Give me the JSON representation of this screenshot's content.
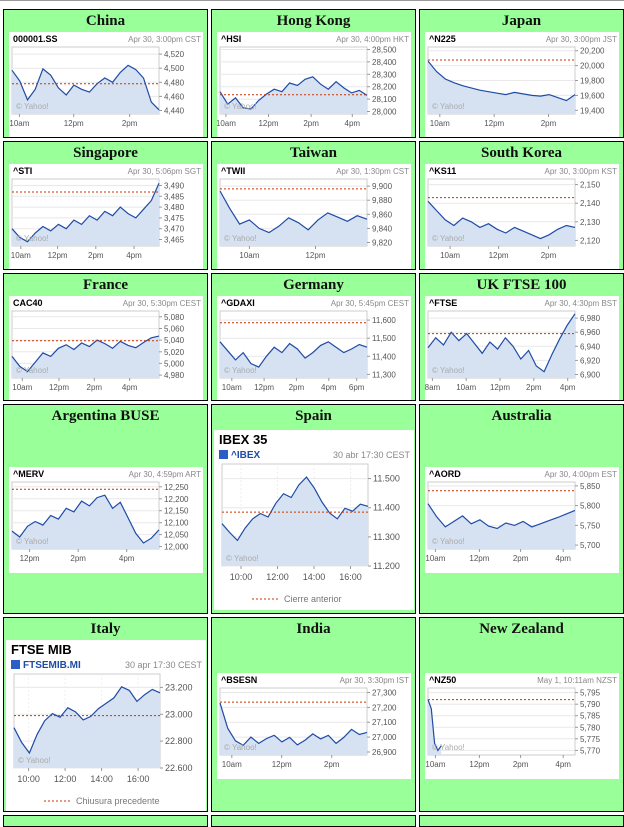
{
  "watermark": "© Yahoo!",
  "colors": {
    "cell_bg": "#99ff99",
    "line": "#1f4ba5",
    "fill": "#d6e2f2",
    "prev_close": "#cc3300",
    "legend_square": "#2b5cc8",
    "grid": "#e8e8e8",
    "axis_text": "#555555",
    "timestamp_text": "#888888"
  },
  "chart_data": [
    {
      "region": "China",
      "type": "area",
      "style": "mini",
      "symbol": "000001.SS",
      "timestamp": "Apr 30, 3:00pm CST",
      "ylim": [
        4435,
        4530
      ],
      "prev_close": 4478,
      "yticks": [
        {
          "v": 4520,
          "label": "4,520"
        },
        {
          "v": 4500,
          "label": "4,500"
        },
        {
          "v": 4480,
          "label": "4,480"
        },
        {
          "v": 4460,
          "label": "4,460"
        },
        {
          "v": 4440,
          "label": "4,440"
        }
      ],
      "xticks": [
        {
          "p": 0.05,
          "label": "10am"
        },
        {
          "p": 0.42,
          "label": "12pm"
        },
        {
          "p": 0.8,
          "label": "2pm"
        }
      ],
      "x_extent": 1,
      "values": [
        4497,
        4482,
        4455,
        4470,
        4499,
        4490,
        4472,
        4462,
        4476,
        4470,
        4466,
        4478,
        4486,
        4480,
        4494,
        4504,
        4498,
        4486,
        4452,
        4441
      ]
    },
    {
      "region": "Hong Kong",
      "type": "area",
      "style": "mini",
      "symbol": "^HSI",
      "timestamp": "Apr 30, 4:00pm HKT",
      "ylim": [
        27980,
        28520
      ],
      "prev_close": 28135,
      "yticks": [
        {
          "v": 28500,
          "label": "28,500"
        },
        {
          "v": 28400,
          "label": "28,400"
        },
        {
          "v": 28300,
          "label": "28,300"
        },
        {
          "v": 28200,
          "label": "28,200"
        },
        {
          "v": 28100,
          "label": "28,100"
        },
        {
          "v": 28000,
          "label": "28,000"
        }
      ],
      "xticks": [
        {
          "p": 0.04,
          "label": "10am"
        },
        {
          "p": 0.33,
          "label": "12pm"
        },
        {
          "p": 0.62,
          "label": "2pm"
        },
        {
          "p": 0.9,
          "label": "4pm"
        }
      ],
      "x_extent": 1,
      "values": [
        28160,
        28060,
        28110,
        28030,
        28020,
        28090,
        28140,
        28180,
        28160,
        28230,
        28210,
        28260,
        28280,
        28220,
        28180,
        28240,
        28190,
        28150,
        28170,
        28130
      ]
    },
    {
      "region": "Japan",
      "type": "area",
      "style": "mini",
      "symbol": "^N225",
      "timestamp": "Apr 30, 3:00pm JST",
      "ylim": [
        19350,
        20250
      ],
      "prev_close": 20075,
      "yticks": [
        {
          "v": 20200,
          "label": "20,200"
        },
        {
          "v": 20000,
          "label": "20,000"
        },
        {
          "v": 19800,
          "label": "19,800"
        },
        {
          "v": 19600,
          "label": "19,600"
        },
        {
          "v": 19400,
          "label": "19,400"
        }
      ],
      "xticks": [
        {
          "p": 0.08,
          "label": "10am"
        },
        {
          "p": 0.45,
          "label": "12pm"
        },
        {
          "p": 0.82,
          "label": "2pm"
        }
      ],
      "x_extent": 1,
      "values": [
        20060,
        19920,
        19820,
        19770,
        19730,
        19700,
        19670,
        19650,
        19630,
        19610,
        19640,
        19620,
        19600,
        19590,
        19610,
        19570,
        19530,
        19610
      ]
    },
    {
      "region": "Singapore",
      "type": "area",
      "style": "mini",
      "symbol": "^STI",
      "timestamp": "Apr 30, 5:06pm SGT",
      "ylim": [
        3462,
        3493
      ],
      "prev_close": 3487,
      "yticks": [
        {
          "v": 3490,
          "label": "3,490"
        },
        {
          "v": 3485,
          "label": "3,485"
        },
        {
          "v": 3480,
          "label": "3,480"
        },
        {
          "v": 3475,
          "label": "3,475"
        },
        {
          "v": 3470,
          "label": "3,470"
        },
        {
          "v": 3465,
          "label": "3,465"
        }
      ],
      "xticks": [
        {
          "p": 0.06,
          "label": "10am"
        },
        {
          "p": 0.31,
          "label": "12pm"
        },
        {
          "p": 0.57,
          "label": "2pm"
        },
        {
          "p": 0.83,
          "label": "4pm"
        }
      ],
      "x_extent": 1,
      "values": [
        3470,
        3466,
        3464,
        3468,
        3471,
        3469,
        3472,
        3470,
        3474,
        3472,
        3476,
        3474,
        3478,
        3476,
        3480,
        3477,
        3475,
        3479,
        3483,
        3491
      ]
    },
    {
      "region": "Taiwan",
      "type": "area",
      "style": "mini",
      "symbol": "^TWII",
      "timestamp": "Apr 30, 1:30pm CST",
      "ylim": [
        9815,
        9910
      ],
      "prev_close": 9896,
      "yticks": [
        {
          "v": 9900,
          "label": "9,900"
        },
        {
          "v": 9880,
          "label": "9,880"
        },
        {
          "v": 9860,
          "label": "9,860"
        },
        {
          "v": 9840,
          "label": "9,840"
        },
        {
          "v": 9820,
          "label": "9,820"
        }
      ],
      "xticks": [
        {
          "p": 0.2,
          "label": "10am"
        },
        {
          "p": 0.65,
          "label": "12pm"
        }
      ],
      "x_extent": 1,
      "values": [
        9893,
        9868,
        9846,
        9852,
        9840,
        9834,
        9843,
        9855,
        9848,
        9838,
        9852,
        9862,
        9856,
        9850,
        9858,
        9853
      ]
    },
    {
      "region": "South Korea",
      "type": "area",
      "style": "mini",
      "symbol": "^KS11",
      "timestamp": "Apr 30, 3:00pm KST",
      "ylim": [
        2117,
        2153
      ],
      "prev_close": 2143,
      "yticks": [
        {
          "v": 2150,
          "label": "2,150"
        },
        {
          "v": 2140,
          "label": "2,140"
        },
        {
          "v": 2130,
          "label": "2,130"
        },
        {
          "v": 2120,
          "label": "2,120"
        }
      ],
      "xticks": [
        {
          "p": 0.15,
          "label": "10am"
        },
        {
          "p": 0.48,
          "label": "12pm"
        },
        {
          "p": 0.82,
          "label": "2pm"
        }
      ],
      "x_extent": 1,
      "values": [
        2141,
        2136,
        2131,
        2128,
        2132,
        2130,
        2127,
        2129,
        2126,
        2124,
        2127,
        2125,
        2123,
        2121,
        2123,
        2126,
        2128,
        2127
      ]
    },
    {
      "region": "France",
      "type": "area",
      "style": "mini",
      "symbol": "CAC40",
      "timestamp": "Apr 30, 5:30pm CEST",
      "ylim": [
        4975,
        5090
      ],
      "prev_close": 5039,
      "yticks": [
        {
          "v": 5080,
          "label": "5,080"
        },
        {
          "v": 5060,
          "label": "5,060"
        },
        {
          "v": 5040,
          "label": "5,040"
        },
        {
          "v": 5020,
          "label": "5,020"
        },
        {
          "v": 5000,
          "label": "5,000"
        },
        {
          "v": 4980,
          "label": "4,980"
        }
      ],
      "xticks": [
        {
          "p": 0.07,
          "label": "10am"
        },
        {
          "p": 0.32,
          "label": "12pm"
        },
        {
          "p": 0.56,
          "label": "2pm"
        },
        {
          "p": 0.8,
          "label": "4pm"
        }
      ],
      "x_extent": 1,
      "values": [
        5012,
        4995,
        4986,
        5002,
        5018,
        5012,
        5026,
        5032,
        5024,
        5035,
        5029,
        5040,
        5034,
        5026,
        5038,
        5031,
        5027,
        5036,
        5044,
        5047
      ]
    },
    {
      "region": "Germany",
      "type": "area",
      "style": "mini",
      "symbol": "^GDAXI",
      "timestamp": "Apr 30, 5:45pm CEST",
      "ylim": [
        11280,
        11650
      ],
      "prev_close": 11585,
      "yticks": [
        {
          "v": 11600,
          "label": "11,600"
        },
        {
          "v": 11500,
          "label": "11,500"
        },
        {
          "v": 11400,
          "label": "11,400"
        },
        {
          "v": 11300,
          "label": "11,300"
        }
      ],
      "xticks": [
        {
          "p": 0.08,
          "label": "10am"
        },
        {
          "p": 0.3,
          "label": "12pm"
        },
        {
          "p": 0.52,
          "label": "2pm"
        },
        {
          "p": 0.74,
          "label": "4pm"
        },
        {
          "p": 0.93,
          "label": "6pm"
        }
      ],
      "x_extent": 1,
      "values": [
        11480,
        11430,
        11380,
        11420,
        11360,
        11340,
        11400,
        11450,
        11420,
        11470,
        11440,
        11390,
        11420,
        11460,
        11480,
        11450,
        11420,
        11440,
        11465,
        11450
      ]
    },
    {
      "region": "UK FTSE 100",
      "type": "area",
      "style": "mini",
      "symbol": "^FTSE",
      "timestamp": "Apr 30, 4:30pm BST",
      "ylim": [
        6895,
        6990
      ],
      "prev_close": 6958,
      "yticks": [
        {
          "v": 6980,
          "label": "6,980"
        },
        {
          "v": 6960,
          "label": "6,960"
        },
        {
          "v": 6940,
          "label": "6,940"
        },
        {
          "v": 6920,
          "label": "6,920"
        },
        {
          "v": 6900,
          "label": "6,900"
        }
      ],
      "xticks": [
        {
          "p": 0.03,
          "label": "8am"
        },
        {
          "p": 0.26,
          "label": "10am"
        },
        {
          "p": 0.49,
          "label": "12pm"
        },
        {
          "p": 0.72,
          "label": "2pm"
        },
        {
          "p": 0.95,
          "label": "4pm"
        }
      ],
      "x_extent": 1,
      "values": [
        6938,
        6952,
        6942,
        6960,
        6948,
        6958,
        6944,
        6930,
        6946,
        6936,
        6952,
        6940,
        6922,
        6934,
        6912,
        6904,
        6928,
        6950,
        6970,
        6986
      ]
    },
    {
      "region": "Argentina BUSE",
      "type": "area",
      "style": "mini",
      "symbol": "^MERV",
      "timestamp": "Apr 30, 4:59pm ART",
      "ylim": [
        11990,
        12270
      ],
      "prev_close": 12240,
      "yticks": [
        {
          "v": 12250,
          "label": "12,250"
        },
        {
          "v": 12200,
          "label": "12,200"
        },
        {
          "v": 12150,
          "label": "12,150"
        },
        {
          "v": 12100,
          "label": "12,100"
        },
        {
          "v": 12050,
          "label": "12,050"
        },
        {
          "v": 12000,
          "label": "12,000"
        }
      ],
      "xticks": [
        {
          "p": 0.12,
          "label": "12pm"
        },
        {
          "p": 0.45,
          "label": "2pm"
        },
        {
          "p": 0.78,
          "label": "4pm"
        }
      ],
      "x_extent": 1,
      "values": [
        12065,
        12040,
        12085,
        12105,
        12090,
        12130,
        12115,
        12160,
        12145,
        12190,
        12170,
        12205,
        12215,
        12160,
        12185,
        12120,
        12055,
        12015,
        12035,
        12070
      ]
    },
    {
      "region": "Spain",
      "type": "area",
      "style": "big",
      "title": "IBEX 35",
      "legend_symbol": "^IBEX",
      "symbol": "^IBEX",
      "timestamp": "30 abr 17:30 CEST",
      "footer_legend": "Cierre anterior",
      "ylim": [
        11200,
        11550
      ],
      "prev_close": 11385,
      "yticks": [
        {
          "v": 11500,
          "label": "11.500"
        },
        {
          "v": 11400,
          "label": "11.400"
        },
        {
          "v": 11300,
          "label": "11.300"
        },
        {
          "v": 11200,
          "label": "11.200"
        }
      ],
      "xticks": [
        {
          "p": 0.13,
          "label": "10:00"
        },
        {
          "p": 0.38,
          "label": "12:00"
        },
        {
          "p": 0.63,
          "label": "14:00"
        },
        {
          "p": 0.88,
          "label": "16:00"
        }
      ],
      "x_extent": 1,
      "values": [
        11345,
        11315,
        11288,
        11330,
        11362,
        11380,
        11368,
        11415,
        11448,
        11435,
        11478,
        11505,
        11468,
        11420,
        11382,
        11362,
        11398,
        11388,
        11412,
        11405
      ]
    },
    {
      "region": "Australia",
      "type": "area",
      "style": "mini",
      "symbol": "^AORD",
      "timestamp": "Apr 30, 4:00pm EST",
      "ylim": [
        5690,
        5860
      ],
      "prev_close": 5838,
      "yticks": [
        {
          "v": 5850,
          "label": "5,850"
        },
        {
          "v": 5800,
          "label": "5,800"
        },
        {
          "v": 5750,
          "label": "5,750"
        },
        {
          "v": 5700,
          "label": "5,700"
        }
      ],
      "xticks": [
        {
          "p": 0.05,
          "label": "10am"
        },
        {
          "p": 0.35,
          "label": "12pm"
        },
        {
          "p": 0.63,
          "label": "2pm"
        },
        {
          "p": 0.92,
          "label": "4pm"
        }
      ],
      "x_extent": 1,
      "values": [
        5805,
        5772,
        5746,
        5760,
        5774,
        5754,
        5764,
        5748,
        5742,
        5756,
        5750,
        5760,
        5746,
        5754,
        5762,
        5770,
        5779,
        5788
      ]
    },
    {
      "region": "Italy",
      "type": "area",
      "style": "big",
      "title": "FTSE MIB",
      "legend_symbol": "FTSEMIB.MI",
      "symbol": "FTSEMIB.MI",
      "timestamp": "30 apr 17:30 CEST",
      "footer_legend": "Chiusura precedente",
      "ylim": [
        22600,
        23300
      ],
      "prev_close": 22990,
      "yticks": [
        {
          "v": 23200,
          "label": "23.200"
        },
        {
          "v": 23000,
          "label": "23.000"
        },
        {
          "v": 22800,
          "label": "22.800"
        },
        {
          "v": 22600,
          "label": "22.600"
        }
      ],
      "xticks": [
        {
          "p": 0.1,
          "label": "10:00"
        },
        {
          "p": 0.35,
          "label": "12:00"
        },
        {
          "p": 0.6,
          "label": "14:00"
        },
        {
          "p": 0.85,
          "label": "16:00"
        }
      ],
      "x_extent": 1,
      "values": [
        22900,
        22790,
        22712,
        22850,
        22952,
        23005,
        22978,
        23048,
        23018,
        22958,
        22984,
        23042,
        23082,
        23122,
        23205,
        23178,
        23096,
        23146,
        23185,
        23160
      ]
    },
    {
      "region": "India",
      "type": "area",
      "style": "mini",
      "symbol": "^BSESN",
      "timestamp": "Apr 30, 3:30pm IST",
      "ylim": [
        26880,
        27330
      ],
      "prev_close": 27235,
      "yticks": [
        {
          "v": 27300,
          "label": "27,300"
        },
        {
          "v": 27200,
          "label": "27,200"
        },
        {
          "v": 27100,
          "label": "27,100"
        },
        {
          "v": 27000,
          "label": "27,000"
        },
        {
          "v": 26900,
          "label": "26,900"
        }
      ],
      "xticks": [
        {
          "p": 0.08,
          "label": "10am"
        },
        {
          "p": 0.42,
          "label": "12pm"
        },
        {
          "p": 0.76,
          "label": "2pm"
        }
      ],
      "x_extent": 1,
      "values": [
        27230,
        27060,
        26975,
        26945,
        27000,
        26958,
        26990,
        27012,
        26968,
        26998,
        26948,
        26980,
        27022,
        26988,
        27012,
        26958,
        26998,
        27052,
        27018,
        27032
      ]
    },
    {
      "region": "New Zealand",
      "type": "area",
      "style": "mini",
      "symbol": "^NZ50",
      "timestamp": "May 1, 10:11am NZST",
      "ylim": [
        5768,
        5797
      ],
      "prev_close": 5792,
      "yticks": [
        {
          "v": 5795,
          "label": "5,795"
        },
        {
          "v": 5790,
          "label": "5,790"
        },
        {
          "v": 5785,
          "label": "5,785"
        },
        {
          "v": 5780,
          "label": "5,780"
        },
        {
          "v": 5775,
          "label": "5,775"
        },
        {
          "v": 5770,
          "label": "5,770"
        }
      ],
      "xticks": [
        {
          "p": 0.05,
          "label": "10am"
        },
        {
          "p": 0.35,
          "label": "12pm"
        },
        {
          "p": 0.63,
          "label": "2pm"
        },
        {
          "p": 0.92,
          "label": "4pm"
        }
      ],
      "x_extent": 0.09,
      "values": [
        5792,
        5788,
        5773,
        5770,
        5772
      ]
    }
  ]
}
